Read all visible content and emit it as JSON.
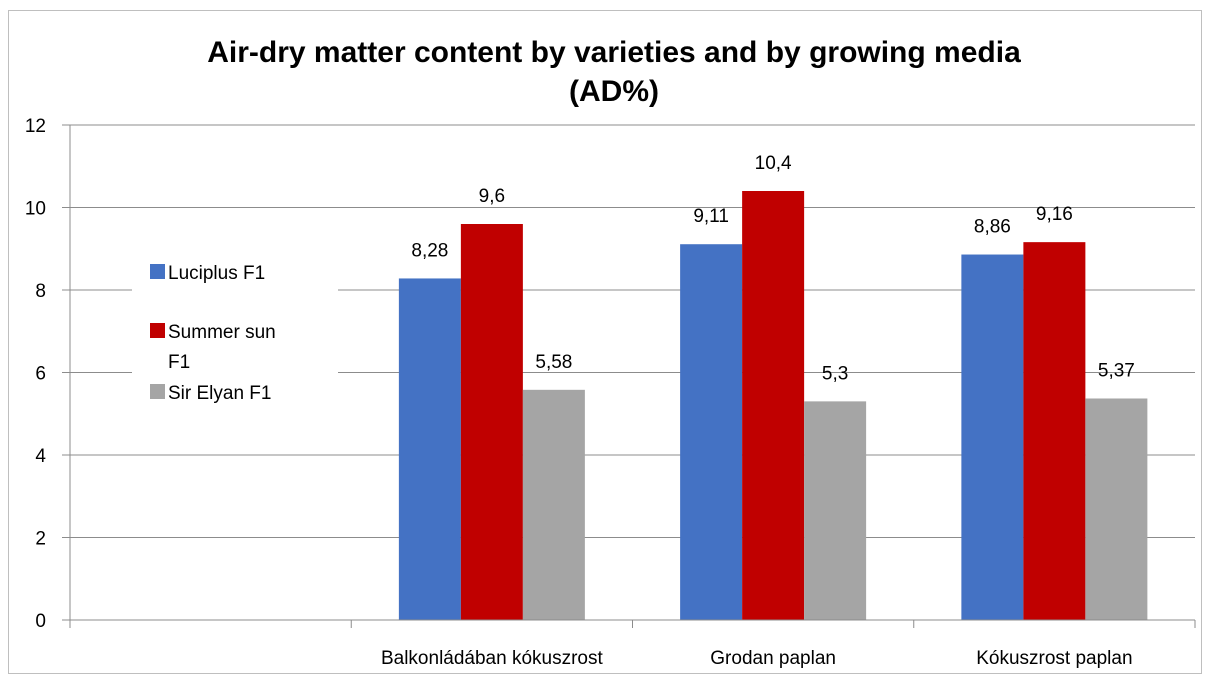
{
  "chart_data": {
    "type": "bar",
    "title_lines": [
      "Air-dry matter content by varieties and by growing media",
      "(AD%)"
    ],
    "categories": [
      "",
      "Balkonládában kókuszrost",
      "Grodan paplan",
      "Kókuszrost paplan"
    ],
    "series": [
      {
        "name": "Luciplus F1",
        "color": "#4472c4",
        "values": [
          null,
          8.28,
          9.11,
          8.86
        ],
        "labels": [
          "",
          "8,28",
          "9,11",
          "8,86"
        ]
      },
      {
        "name": "Summer sun F1",
        "color": "#c00000",
        "values": [
          null,
          9.6,
          10.4,
          9.16
        ],
        "labels": [
          "",
          "9,6",
          "10,4",
          "9,16"
        ]
      },
      {
        "name": "Sir Elyan F1",
        "color": "#a5a5a5",
        "values": [
          null,
          5.58,
          5.3,
          5.37
        ],
        "labels": [
          "",
          "5,58",
          "5,3",
          "5,37"
        ]
      }
    ],
    "legend_lines": [
      [
        "Luciplus F1"
      ],
      [
        "Summer sun",
        "F1"
      ],
      [
        "Sir Elyan F1"
      ]
    ],
    "ylim": [
      0,
      12
    ],
    "yticks": [
      0,
      2,
      4,
      6,
      8,
      10,
      12
    ],
    "grid": true,
    "legend_position": "left"
  }
}
